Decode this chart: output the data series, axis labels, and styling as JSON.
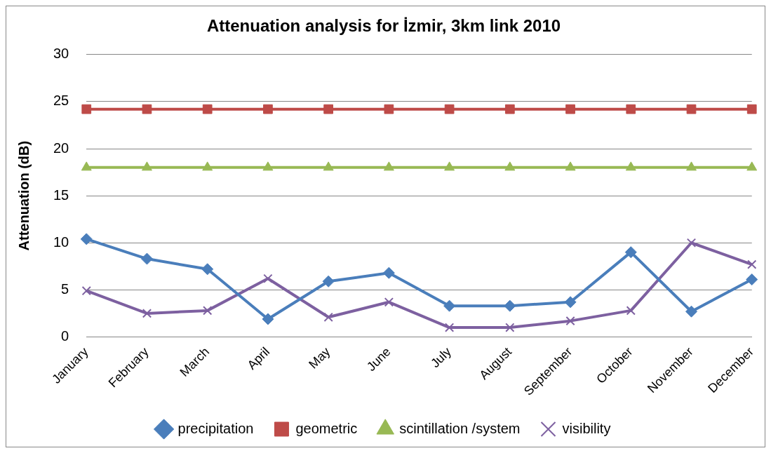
{
  "chart_data": {
    "type": "line",
    "title": "Attenuation analysis for İzmir, 3km link 2010",
    "ylabel": "Attenuation (dB)",
    "categories": [
      "January",
      "February",
      "March",
      "April",
      "May",
      "June",
      "July",
      "August",
      "September",
      "October",
      "November",
      "December"
    ],
    "series": [
      {
        "name": "precipitation",
        "color": "#4a7ebb",
        "marker": "diamond",
        "values": [
          10.4,
          8.3,
          7.2,
          1.9,
          5.9,
          6.8,
          3.3,
          3.3,
          3.7,
          9.0,
          2.7,
          6.1
        ]
      },
      {
        "name": "geometric",
        "color": "#be4b48",
        "marker": "square",
        "values": [
          24.2,
          24.2,
          24.2,
          24.2,
          24.2,
          24.2,
          24.2,
          24.2,
          24.2,
          24.2,
          24.2,
          24.2
        ]
      },
      {
        "name": "scintillation /system",
        "color": "#98b954",
        "marker": "triangle",
        "values": [
          18,
          18,
          18,
          18,
          18,
          18,
          18,
          18,
          18,
          18,
          18,
          18
        ]
      },
      {
        "name": "visibility",
        "color": "#7d60a0",
        "marker": "cross",
        "values": [
          4.9,
          2.5,
          2.8,
          6.2,
          2.1,
          3.7,
          1.0,
          1.0,
          1.7,
          2.8,
          10.0,
          7.7
        ]
      }
    ],
    "ylim": [
      0,
      30
    ],
    "yticks": [
      0,
      5,
      10,
      15,
      20,
      25,
      30
    ],
    "grid": "y",
    "legend": "bottom"
  }
}
